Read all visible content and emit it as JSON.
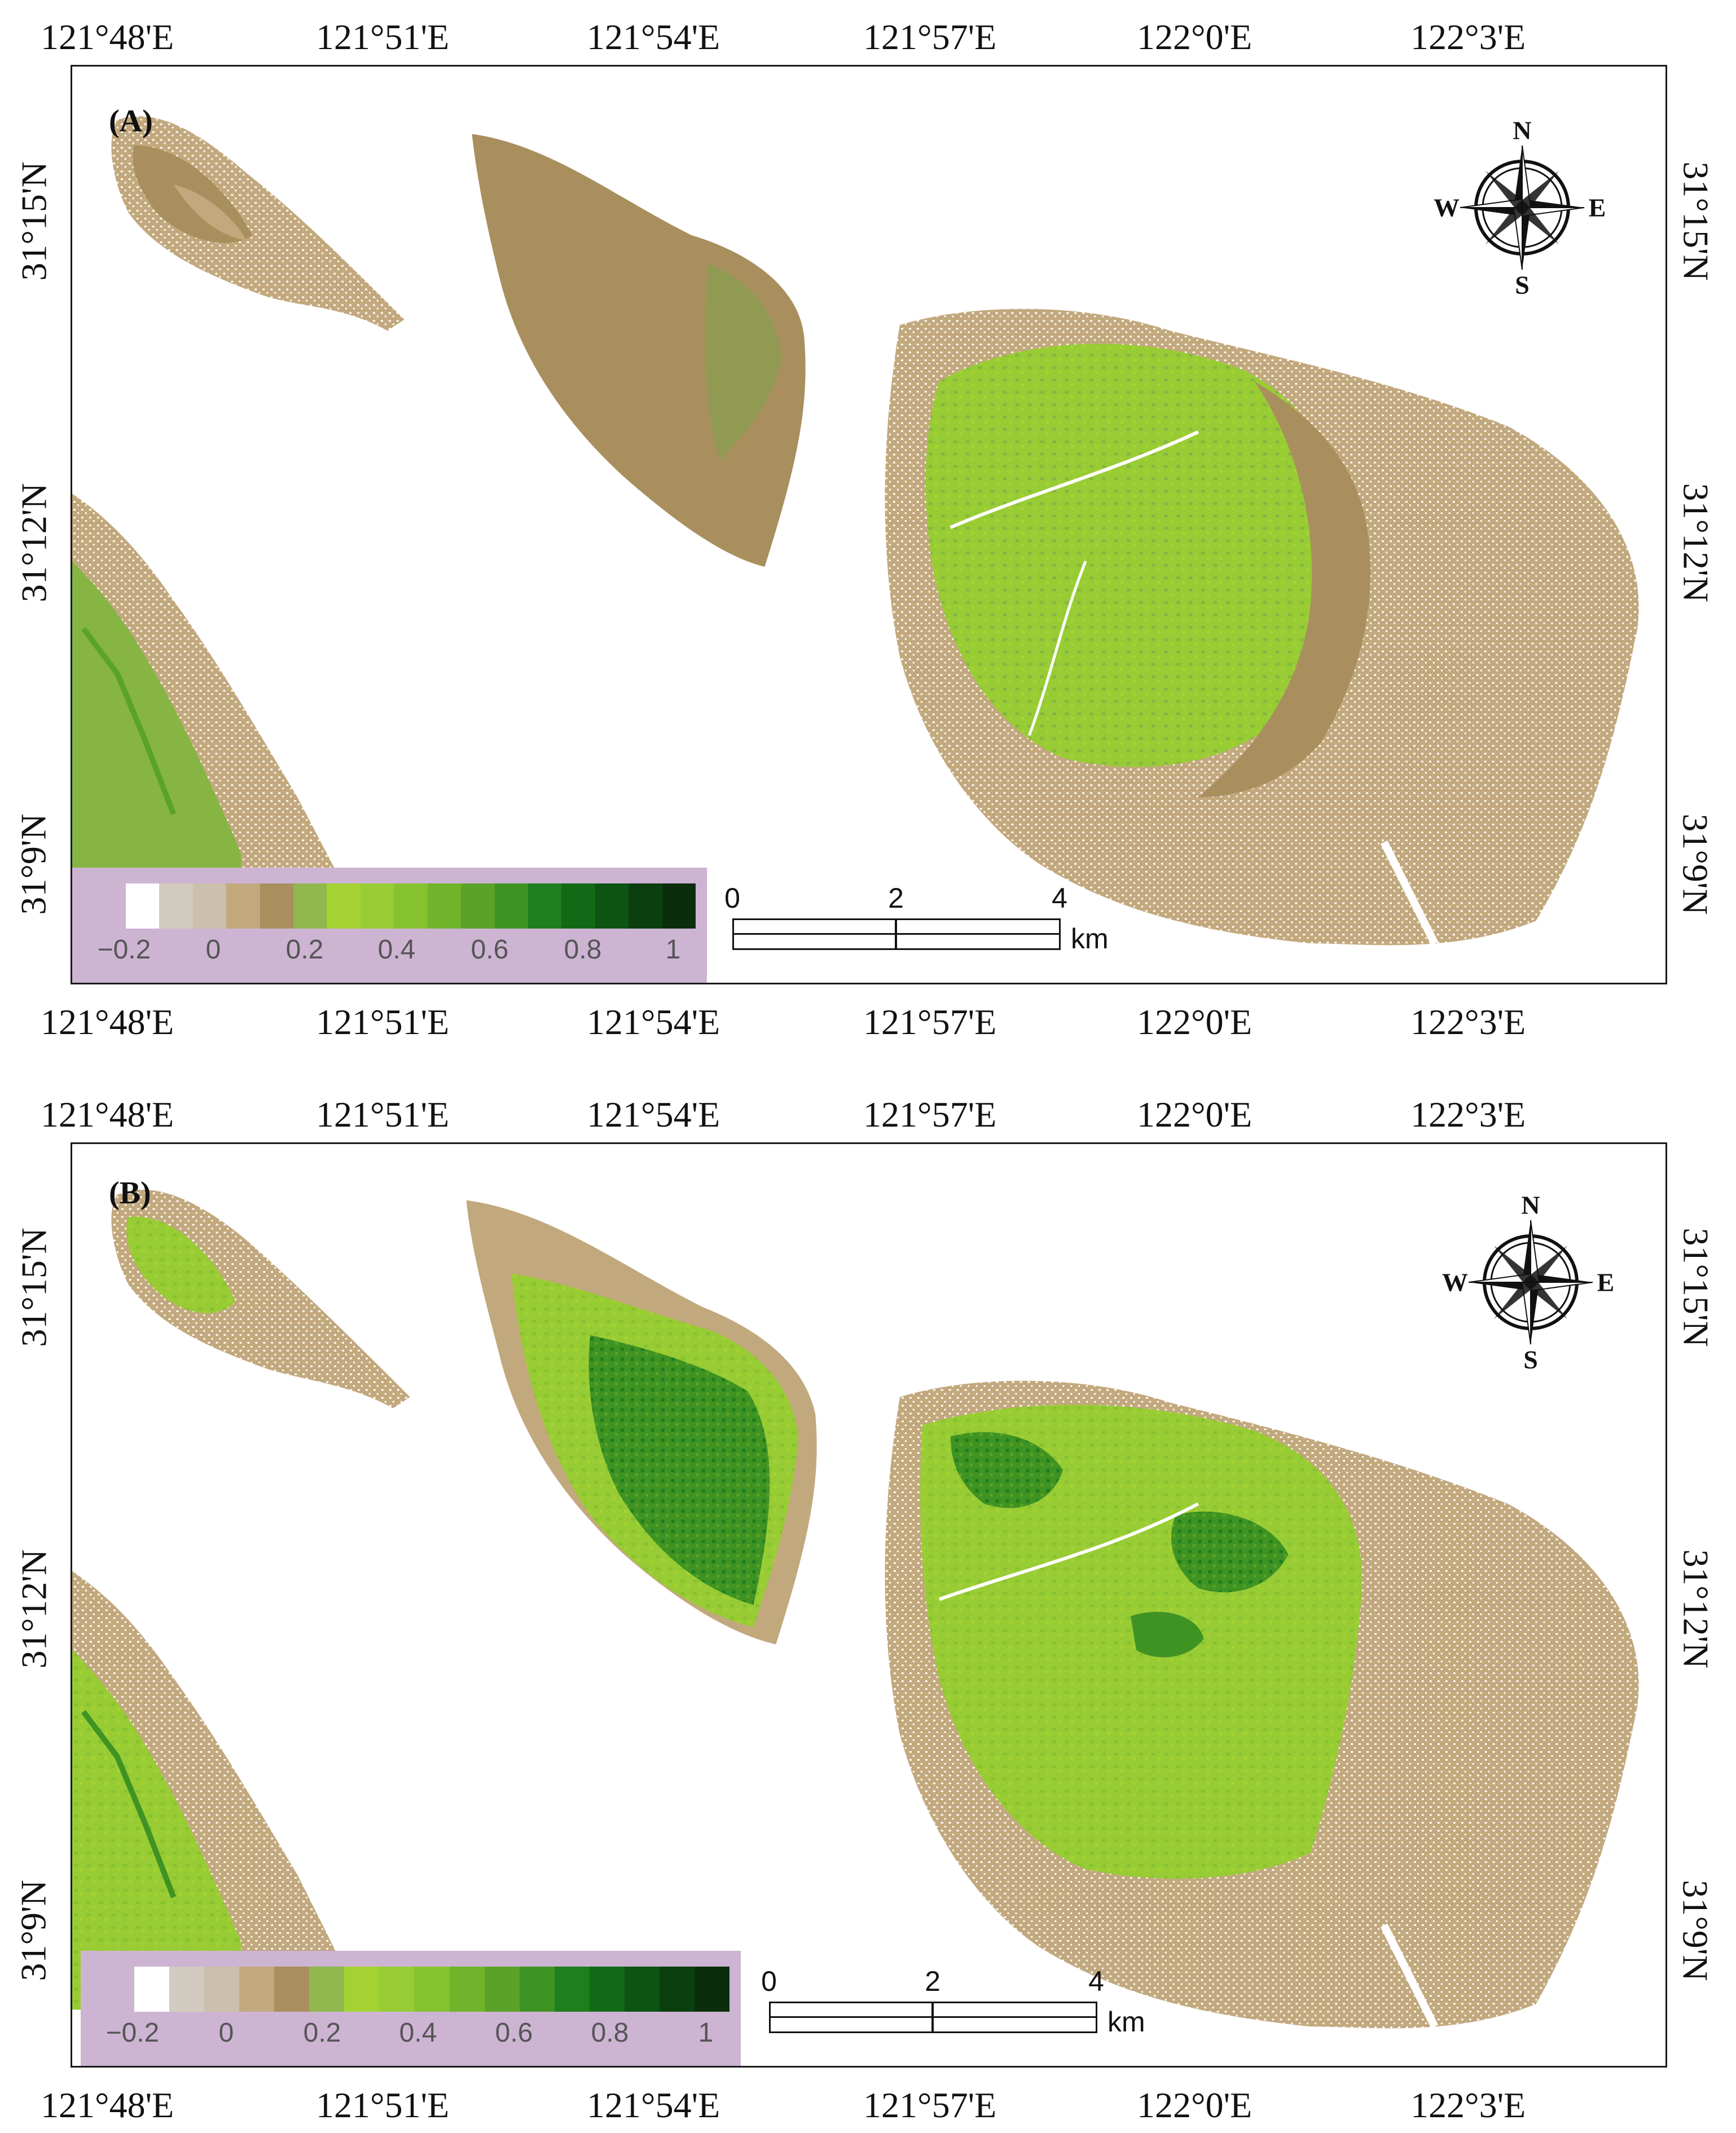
{
  "panels": [
    {
      "id": "A",
      "label": "(A)",
      "lon_labels": [
        "121°48'E",
        "121°51'E",
        "121°54'E",
        "121°57'E",
        "122°0'E",
        "122°3'E"
      ],
      "lat_labels": [
        "31°15'N",
        "31°12'N",
        "31°9'N"
      ],
      "legend": {
        "colors": [
          "#ffffff",
          "#d2cbc0",
          "#cbbfae",
          "#c2a87d",
          "#a98f5e",
          "#8fb74e",
          "#a5d233",
          "#98cc34",
          "#86c130",
          "#6fb42a",
          "#5aa328",
          "#3f9323",
          "#1d7f1d",
          "#126a17",
          "#0d5314",
          "#0b3f10",
          "#0a2e0c"
        ],
        "labels": [
          "−0.2",
          "0",
          "0.2",
          "0.4",
          "0.6",
          "0.8",
          "1"
        ]
      },
      "scale": {
        "ticks": [
          "0",
          "2",
          "4"
        ],
        "unit": "km"
      },
      "compass": {
        "n": "N",
        "s": "S",
        "e": "E",
        "w": "W",
        "icon": "compass-rose-icon"
      }
    },
    {
      "id": "B",
      "label": "(B)",
      "lon_labels": [
        "121°48'E",
        "121°51'E",
        "121°54'E",
        "121°57'E",
        "122°0'E",
        "122°3'E"
      ],
      "lat_labels": [
        "31°15'N",
        "31°12'N",
        "31°9'N"
      ],
      "legend": {
        "colors": [
          "#ffffff",
          "#d2cbc0",
          "#cbbfae",
          "#c2a87d",
          "#a98f5e",
          "#8fb74e",
          "#a5d233",
          "#98cc34",
          "#86c130",
          "#6fb42a",
          "#5aa328",
          "#3f9323",
          "#1d7f1d",
          "#126a17",
          "#0d5314",
          "#0b3f10",
          "#0a2e0c"
        ],
        "labels": [
          "−0.2",
          "0",
          "0.2",
          "0.4",
          "0.6",
          "0.8",
          "1"
        ]
      },
      "scale": {
        "ticks": [
          "0",
          "2",
          "4"
        ],
        "unit": "km"
      },
      "compass": {
        "n": "N",
        "s": "S",
        "e": "E",
        "w": "W",
        "icon": "compass-rose-icon"
      }
    }
  ]
}
